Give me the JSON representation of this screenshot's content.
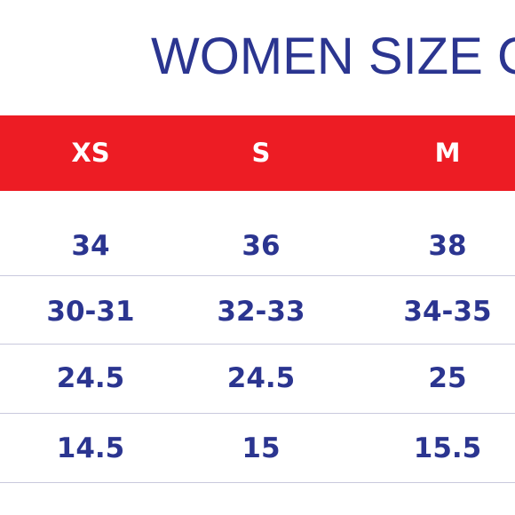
{
  "header": {
    "title": "WOMEN SIZE C"
  },
  "table": {
    "columns": [
      "XS",
      "S",
      "M"
    ],
    "rows": [
      [
        "34",
        "36",
        "38"
      ],
      [
        "30-31",
        "32-33",
        "34-35"
      ],
      [
        "24.5",
        "24.5",
        "25"
      ],
      [
        "14.5",
        "15",
        "15.5"
      ]
    ]
  }
}
